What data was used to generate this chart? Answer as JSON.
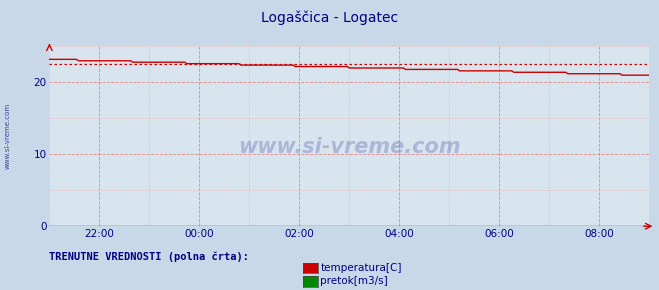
{
  "title": "Logaščica - Logatec",
  "title_color": "#000080",
  "title_fontsize": 10,
  "plot_bg_color": "#d8e4ee",
  "fig_bg_color": "#c8d8e8",
  "grid_color_major": "#e08080",
  "grid_color_minor": "#f0b0b0",
  "xlim": [
    0,
    288
  ],
  "ylim": [
    0,
    25
  ],
  "yticks": [
    0,
    10,
    20
  ],
  "xtick_labels": [
    "22:00",
    "00:00",
    "02:00",
    "04:00",
    "06:00",
    "08:00"
  ],
  "xtick_positions": [
    24,
    72,
    120,
    168,
    216,
    264
  ],
  "temp_color": "#cc0000",
  "flow_color": "#008800",
  "avg_line_color": "#cc0000",
  "watermark_text": "www.si-vreme.com",
  "watermark_color": "#000080",
  "watermark_alpha": 0.2,
  "label_left": "www.si-vreme.com",
  "label_left_color": "#000080",
  "legend_text1": "TRENUTNE VREDNOSTI (polna črta):",
  "legend_label1": "temperatura[C]",
  "legend_label2": "pretok[m3/s]",
  "legend_color1": "#cc0000",
  "legend_color2": "#008800",
  "temp_data_start": 23.2,
  "temp_data_end": 21.0,
  "avg_value": 22.5,
  "flow_value": 0.04
}
